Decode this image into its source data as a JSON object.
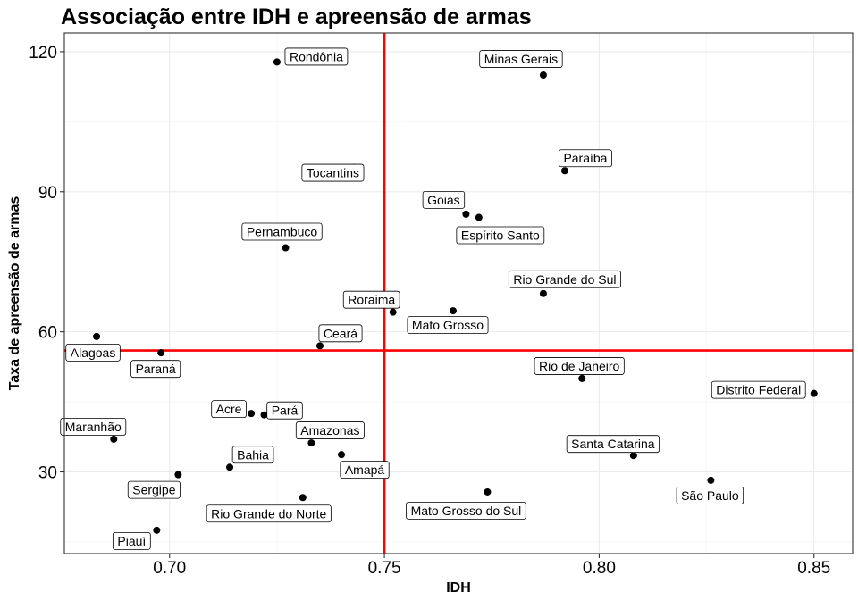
{
  "chart_data": {
    "type": "scatter",
    "title": "Associação entre IDH e apreensão de armas",
    "xlabel": "IDH",
    "ylabel": "Taxa de apreensão de armas",
    "xlim": [
      0.6755,
      0.859
    ],
    "ylim": [
      12.5,
      124
    ],
    "x_ticks": [
      0.7,
      0.75,
      0.8,
      0.85
    ],
    "x_tick_labels": [
      "0.70",
      "0.75",
      "0.80",
      "0.85"
    ],
    "y_ticks": [
      30,
      60,
      90,
      120
    ],
    "y_tick_labels": [
      "30",
      "60",
      "90",
      "120"
    ],
    "grid": true,
    "legend": "none",
    "reference_lines": {
      "vline_x": 0.75,
      "hline_y": 56.0,
      "color": "#ff0000"
    },
    "point_color": "#000000",
    "points": [
      {
        "name": "Rondônia",
        "x": 0.725,
        "y": 117.8
      },
      {
        "name": "Minas Gerais",
        "x": 0.787,
        "y": 115.0
      },
      {
        "name": "Paraíba",
        "x": 0.792,
        "y": 94.5
      },
      {
        "name": "Tocantins",
        "x": 0.743,
        "y": 95.2
      },
      {
        "name": "Goiás",
        "x": 0.769,
        "y": 85.2
      },
      {
        "name": "Espírito Santo",
        "x": 0.772,
        "y": 84.5
      },
      {
        "name": "Pernambuco",
        "x": 0.727,
        "y": 78.0
      },
      {
        "name": "Rio Grande do Sul",
        "x": 0.787,
        "y": 68.2
      },
      {
        "name": "Roraima",
        "x": 0.752,
        "y": 64.2
      },
      {
        "name": "Mato Grosso",
        "x": 0.766,
        "y": 64.5
      },
      {
        "name": "Ceará",
        "x": 0.735,
        "y": 57.0
      },
      {
        "name": "Alagoas",
        "x": 0.683,
        "y": 59.0
      },
      {
        "name": "Paraná",
        "x": 0.698,
        "y": 55.5
      },
      {
        "name": "Rio de Janeiro",
        "x": 0.796,
        "y": 50.0
      },
      {
        "name": "Distrito Federal",
        "x": 0.85,
        "y": 46.8
      },
      {
        "name": "Acre",
        "x": 0.719,
        "y": 42.5
      },
      {
        "name": "Pará",
        "x": 0.722,
        "y": 42.2
      },
      {
        "name": "Maranhão",
        "x": 0.687,
        "y": 37.0
      },
      {
        "name": "Amazonas",
        "x": 0.733,
        "y": 36.2
      },
      {
        "name": "Santa Catarina",
        "x": 0.808,
        "y": 33.5
      },
      {
        "name": "Amapá",
        "x": 0.74,
        "y": 33.7
      },
      {
        "name": "Bahia",
        "x": 0.714,
        "y": 31.0
      },
      {
        "name": "Sergipe",
        "x": 0.702,
        "y": 29.4
      },
      {
        "name": "São Paulo",
        "x": 0.826,
        "y": 28.2
      },
      {
        "name": "Mato Grosso do Sul",
        "x": 0.774,
        "y": 25.7
      },
      {
        "name": "Rio Grande do Norte",
        "x": 0.731,
        "y": 24.5
      },
      {
        "name": "Piauí",
        "x": 0.697,
        "y": 17.5
      }
    ]
  }
}
